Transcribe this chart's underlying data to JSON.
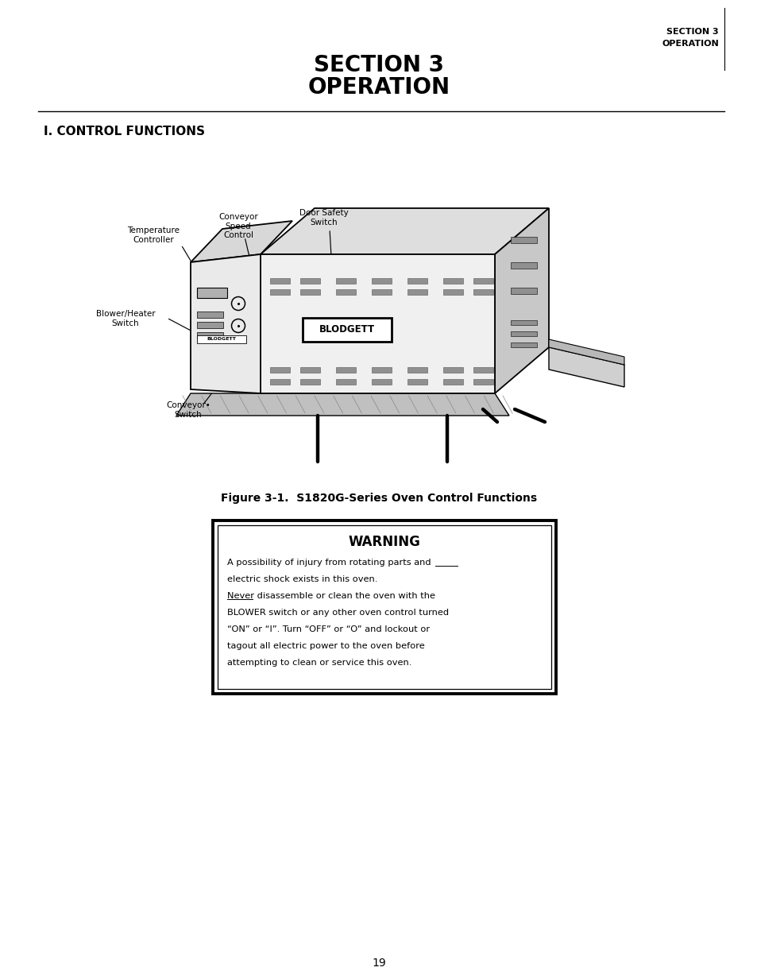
{
  "bg_color": "#ffffff",
  "page_width": 9.54,
  "page_height": 12.32,
  "header_right_line1": "SECTION 3",
  "header_right_line2": "OPERATION",
  "main_title_line1": "SECTION 3",
  "main_title_line2": "OPERATION",
  "section_label": "I. CONTROL FUNCTIONS",
  "figure_caption": "Figure 3-1.  S1820G-Series Oven Control Functions",
  "warning_title": "WARNING",
  "warning_lines": [
    "A possibility of injury from rotating parts and",
    "electric shock exists in this oven.",
    "Never disassemble or clean the oven with the",
    "BLOWER switch or any other oven control turned",
    "“ON” or “I”. Turn “OFF” or “O” and lockout or",
    "tagout all electric power to the oven before",
    "attempting to clean or service this oven."
  ],
  "page_number": "19"
}
